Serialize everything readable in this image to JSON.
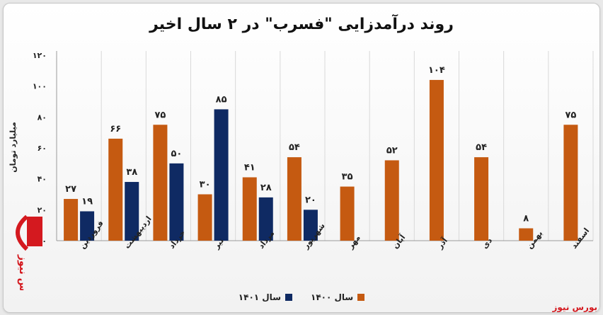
{
  "chart_data": {
    "type": "bar",
    "title": "روند درآمدزایی \"فسرب\" در ۲ سال اخیر",
    "ylabel": "میلیارد تومان",
    "ylim": [
      0,
      120
    ],
    "yticks": [
      "۰",
      "۲۰",
      "۴۰",
      "۶۰",
      "۸۰",
      "۱۰۰",
      "۱۲۰"
    ],
    "categories": [
      "فروردین",
      "اردیبهشت",
      "خرداد",
      "تیر",
      "مرداد",
      "شهریور",
      "مهر",
      "آبان",
      "آذر",
      "دی",
      "بهمن",
      "اسفند"
    ],
    "series": [
      {
        "name": "سال ۱۴۰۰",
        "color": "#c55a11",
        "values": [
          27,
          66,
          75,
          30,
          41,
          54,
          35,
          52,
          104,
          54,
          8,
          75
        ],
        "labels": [
          "۲۷",
          "۶۶",
          "۷۵",
          "۳۰",
          "۴۱",
          "۵۴",
          "۳۵",
          "۵۲",
          "۱۰۴",
          "۵۴",
          "۸",
          "۷۵"
        ]
      },
      {
        "name": "سال ۱۴۰۱",
        "color": "#0f2a63",
        "values": [
          19,
          38,
          50,
          85,
          28,
          20,
          null,
          null,
          null,
          null,
          null,
          null
        ],
        "labels": [
          "۱۹",
          "۳۸",
          "۵۰",
          "۸۵",
          "۲۸",
          "۲۰",
          "",
          "",
          "",
          "",
          "",
          ""
        ]
      }
    ],
    "grid": "vertical-category-dividers"
  },
  "source": "بورس نیوز",
  "logo_text": "بورس نیوز"
}
